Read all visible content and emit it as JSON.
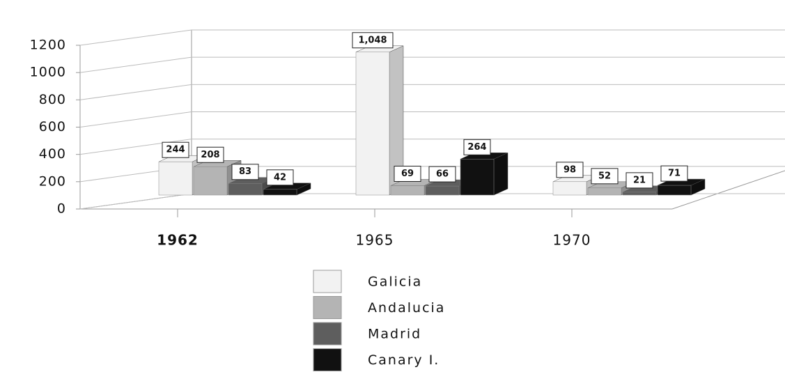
{
  "chart_data": {
    "type": "bar3d",
    "categories": [
      "1962",
      "1965",
      "1970"
    ],
    "series": [
      {
        "name": "Galicia",
        "color": "#f2f2f2",
        "values": [
          244,
          1048,
          98
        ],
        "value_labels": [
          "244",
          "1,048",
          "98"
        ]
      },
      {
        "name": "Andalucia",
        "color": "#b4b4b4",
        "values": [
          208,
          69,
          52
        ]
      },
      {
        "name": "Madrid",
        "color": "#5e5e5e",
        "values": [
          83,
          66,
          21
        ]
      },
      {
        "name": "Canary I.",
        "color": "#111111",
        "values": [
          42,
          264,
          71
        ]
      }
    ],
    "ylim": [
      0,
      1200
    ],
    "yticks": [
      0,
      200,
      400,
      600,
      800,
      1000,
      1200
    ],
    "grid": true
  }
}
